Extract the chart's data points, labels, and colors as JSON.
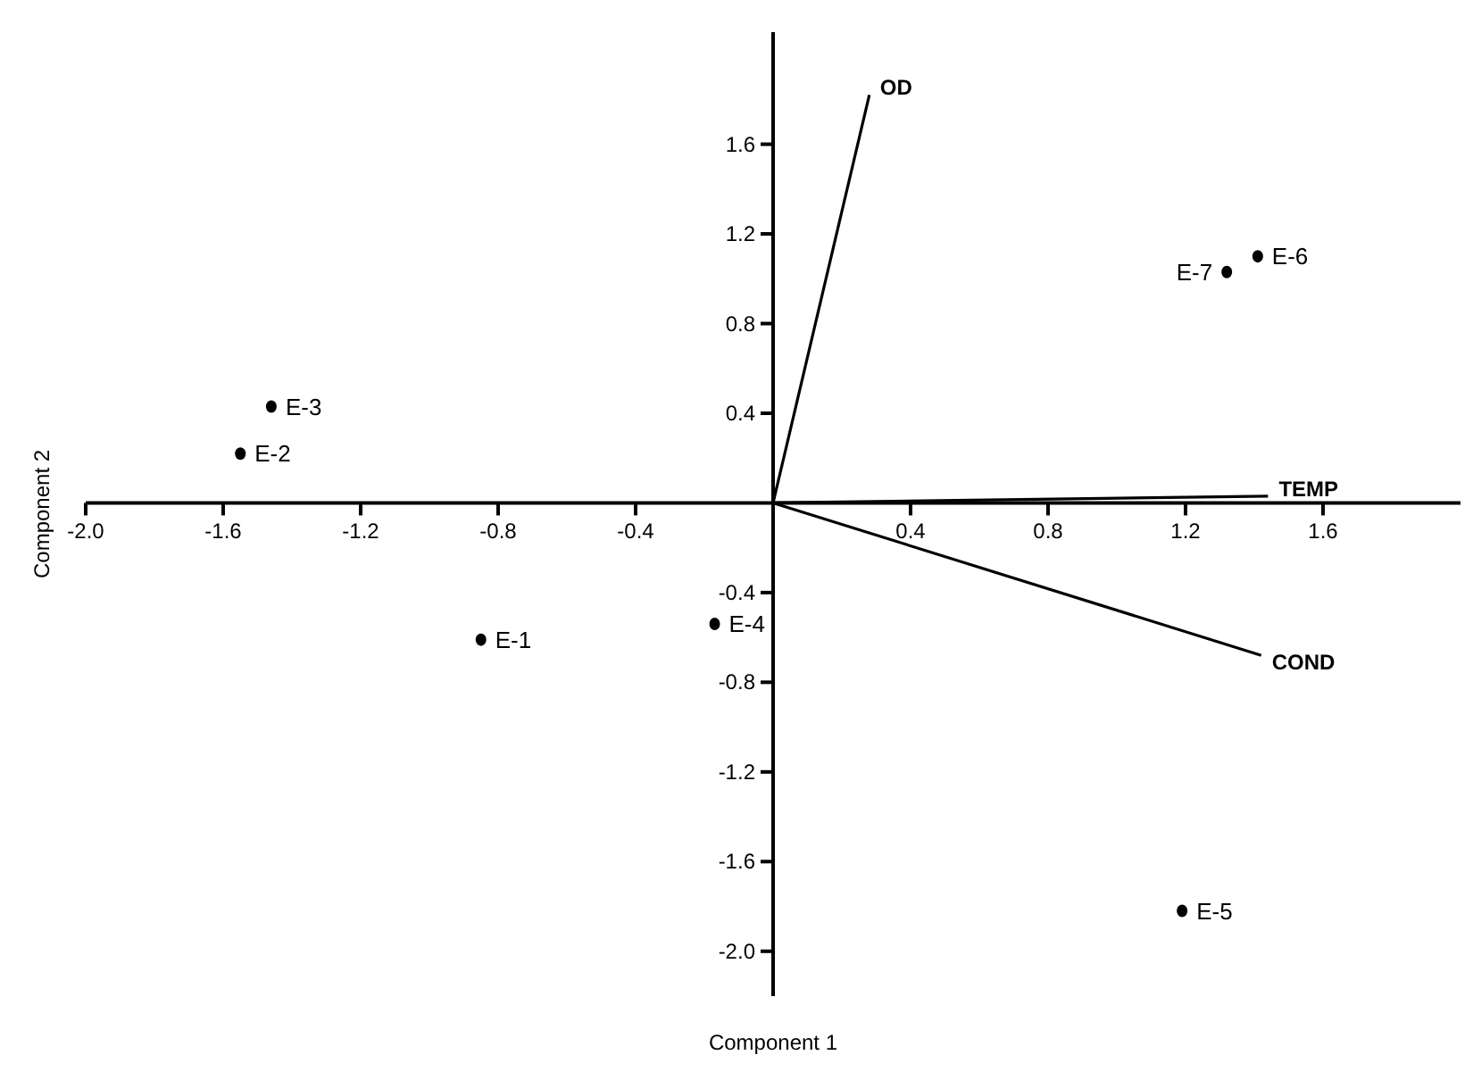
{
  "chart_data": {
    "type": "scatter",
    "xlabel": "Component 1",
    "ylabel": "Component 2",
    "xlim": [
      -2.0,
      2.0
    ],
    "ylim": [
      -2.2,
      2.1
    ],
    "xticks": [
      {
        "value": -2.0,
        "label": "-2.0"
      },
      {
        "value": -1.6,
        "label": "-1.6"
      },
      {
        "value": -1.2,
        "label": "-1.2"
      },
      {
        "value": -0.8,
        "label": "-0.8"
      },
      {
        "value": -0.4,
        "label": "-0.4"
      },
      {
        "value": 0.4,
        "label": "0.4"
      },
      {
        "value": 0.8,
        "label": "0.8"
      },
      {
        "value": 1.2,
        "label": "1.2"
      },
      {
        "value": 1.6,
        "label": "1.6"
      }
    ],
    "yticks": [
      {
        "value": -2.0,
        "label": "-2.0"
      },
      {
        "value": -1.6,
        "label": "-1.6"
      },
      {
        "value": -1.2,
        "label": "-1.2"
      },
      {
        "value": -0.8,
        "label": "-0.8"
      },
      {
        "value": -0.4,
        "label": "-0.4"
      },
      {
        "value": 0.4,
        "label": "0.4"
      },
      {
        "value": 0.8,
        "label": "0.8"
      },
      {
        "value": 1.2,
        "label": "1.2"
      },
      {
        "value": 1.6,
        "label": "1.6"
      }
    ],
    "series": [
      {
        "type": "scatter",
        "color": "#000000",
        "marker": "circle",
        "x": [
          -0.85,
          -1.55,
          -1.46,
          -0.17,
          1.19,
          1.41,
          1.32
        ],
        "values": [
          -0.61,
          0.22,
          0.43,
          -0.54,
          -1.82,
          1.1,
          1.03
        ]
      },
      {
        "type": "line",
        "name": "OD",
        "color": "#000000",
        "marker": "none",
        "x": [
          0,
          0.28
        ],
        "values": [
          0,
          1.82
        ]
      },
      {
        "type": "line",
        "name": "TEMP",
        "color": "#000000",
        "marker": "none",
        "x": [
          0,
          1.44
        ],
        "values": [
          0,
          0.03
        ]
      },
      {
        "type": "line",
        "name": "COND",
        "color": "#000000",
        "marker": "none",
        "x": [
          0,
          1.42
        ],
        "values": [
          0,
          -0.68
        ]
      }
    ],
    "annotations": [
      {
        "text": "E-1",
        "x": -0.85,
        "y": -0.61
      },
      {
        "text": "E-2",
        "x": -1.55,
        "y": 0.22
      },
      {
        "text": "E-3",
        "x": -1.46,
        "y": 0.43
      },
      {
        "text": "E-4",
        "x": -0.17,
        "y": -0.54
      },
      {
        "text": "E-5",
        "x": 1.19,
        "y": -1.82
      },
      {
        "text": "E-6",
        "x": 1.41,
        "y": 1.1
      },
      {
        "text": "E-7",
        "x": 1.32,
        "y": 1.03
      }
    ]
  }
}
